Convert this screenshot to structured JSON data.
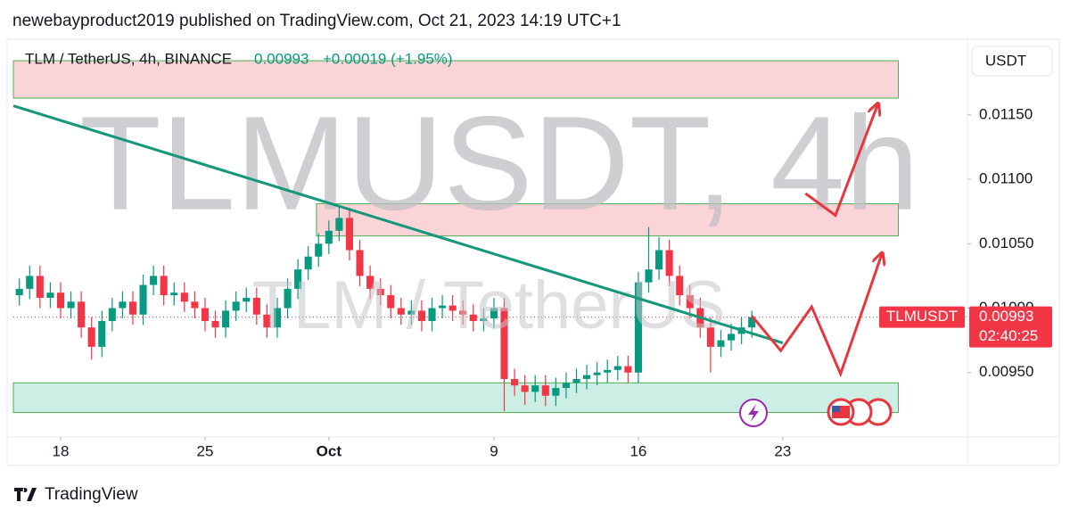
{
  "header": "newebayproduct2019 published on TradingView.com, Oct 21, 2023 14:19 UTC+1",
  "chart_data": {
    "type": "candlestick",
    "symbol": "TLM / TetherUS, 4h, BINANCE",
    "last": 0.00993,
    "change": "+0.00019 (+1.95%)",
    "watermark": "TLMUSDT, 4h",
    "watermark_sub": "TLM / TetherUS",
    "currency": "USDT",
    "price_label": "TLMUSDT",
    "countdown": "02:40:25",
    "colors": {
      "up": "#089981",
      "down": "#f23645",
      "trend": "#16977b",
      "projection": "#e8363f"
    },
    "x": [
      16,
      16.5,
      17,
      17.5,
      18,
      18.5,
      19,
      19.5,
      20,
      20.5,
      21,
      21.5,
      22,
      22.5,
      23,
      23.5,
      24,
      24.5,
      25,
      25.5,
      26,
      26.5,
      27,
      27.5,
      28,
      28.5,
      29,
      29.5,
      30,
      30.5,
      31,
      31.5,
      32,
      32.5,
      33,
      33.5,
      34,
      34.5,
      35,
      35.5,
      36,
      36.5,
      37,
      37.5,
      38,
      38.5,
      39,
      39.5,
      40,
      40.5,
      41,
      41.5,
      42,
      42.5,
      43,
      43.5,
      44,
      44.5,
      45,
      45.5,
      46,
      46.5,
      47,
      47.5,
      48,
      48.5,
      49,
      49.5,
      50,
      50.5,
      51,
      51.5
    ],
    "open": [
      0.0101,
      0.01015,
      0.01025,
      0.01008,
      0.01012,
      0.01,
      0.01005,
      0.00985,
      0.0097,
      0.0099,
      0.01,
      0.01005,
      0.00995,
      0.01018,
      0.01025,
      0.0101,
      0.01012,
      0.01005,
      0.01,
      0.0099,
      0.00985,
      0.00998,
      0.01005,
      0.01008,
      0.00995,
      0.00985,
      0.01,
      0.01015,
      0.0103,
      0.0104,
      0.0105,
      0.0106,
      0.0107,
      0.01045,
      0.01025,
      0.01015,
      0.0101,
      0.01,
      0.00995,
      0.00998,
      0.0099,
      0.01,
      0.01002,
      0.00998,
      0.00995,
      0.0099,
      0.00992,
      0.01,
      0.00945,
      0.0094,
      0.00935,
      0.0094,
      0.00932,
      0.00938,
      0.00942,
      0.00945,
      0.00948,
      0.0095,
      0.00952,
      0.00955,
      0.0095,
      0.0102,
      0.0103,
      0.01045,
      0.01025,
      0.0101,
      0.01,
      0.00985,
      0.0097,
      0.00975,
      0.0098,
      0.00985
    ],
    "high": [
      0.01023,
      0.01033,
      0.01033,
      0.0102,
      0.0102,
      0.01013,
      0.01013,
      0.00993,
      0.00998,
      0.01008,
      0.01013,
      0.01013,
      0.01026,
      0.01033,
      0.01033,
      0.0102,
      0.0102,
      0.01013,
      0.01008,
      0.00998,
      0.01006,
      0.01013,
      0.01016,
      0.01016,
      0.01003,
      0.01008,
      0.01023,
      0.01038,
      0.01048,
      0.01058,
      0.01068,
      0.01079,
      0.01078,
      0.01053,
      0.01033,
      0.01023,
      0.01018,
      0.01008,
      0.01006,
      0.01006,
      0.01008,
      0.0101,
      0.0101,
      0.01006,
      0.01003,
      0.01,
      0.01008,
      0.01008,
      0.00953,
      0.00948,
      0.00948,
      0.00948,
      0.00946,
      0.0095,
      0.00953,
      0.00956,
      0.00958,
      0.0096,
      0.00963,
      0.00963,
      0.01028,
      0.01063,
      0.01055,
      0.01053,
      0.01033,
      0.01018,
      0.01008,
      0.00993,
      0.00983,
      0.00988,
      0.00993,
      0.00998
    ],
    "low": [
      0.01002,
      0.01007,
      0.01,
      0.01,
      0.00992,
      0.00992,
      0.00977,
      0.0096,
      0.00962,
      0.00982,
      0.00992,
      0.00987,
      0.00987,
      0.0101,
      0.01002,
      0.01002,
      0.00997,
      0.00992,
      0.00982,
      0.00977,
      0.00977,
      0.0099,
      0.00997,
      0.00987,
      0.00977,
      0.00977,
      0.00992,
      0.01007,
      0.01022,
      0.01032,
      0.01042,
      0.01052,
      0.01037,
      0.01017,
      0.01007,
      0.01002,
      0.00992,
      0.00987,
      0.00987,
      0.00982,
      0.00982,
      0.00992,
      0.0099,
      0.00987,
      0.00982,
      0.00982,
      0.00984,
      0.0092,
      0.00932,
      0.00925,
      0.00927,
      0.00924,
      0.00924,
      0.0093,
      0.00934,
      0.00937,
      0.0094,
      0.00942,
      0.00944,
      0.00942,
      0.00942,
      0.01012,
      0.01022,
      0.01017,
      0.01002,
      0.00992,
      0.00977,
      0.0095,
      0.00962,
      0.00967,
      0.00972,
      0.00977
    ],
    "close": [
      0.01015,
      0.01025,
      0.01008,
      0.01012,
      0.01,
      0.01005,
      0.00985,
      0.0097,
      0.0099,
      0.01,
      0.01005,
      0.00995,
      0.01018,
      0.01025,
      0.0101,
      0.01012,
      0.01005,
      0.01,
      0.0099,
      0.00985,
      0.00998,
      0.01005,
      0.01008,
      0.00995,
      0.00985,
      0.01,
      0.01015,
      0.0103,
      0.0104,
      0.0105,
      0.0106,
      0.0107,
      0.01045,
      0.01025,
      0.01015,
      0.0101,
      0.01,
      0.00995,
      0.00998,
      0.0099,
      0.01,
      0.01002,
      0.00998,
      0.00995,
      0.0099,
      0.00992,
      0.01,
      0.00945,
      0.0094,
      0.00935,
      0.0094,
      0.00932,
      0.00938,
      0.00942,
      0.00945,
      0.00948,
      0.0095,
      0.00952,
      0.00955,
      0.0095,
      0.0102,
      0.0103,
      0.01045,
      0.01025,
      0.0101,
      0.01,
      0.00985,
      0.0097,
      0.00975,
      0.0098,
      0.00985,
      0.00993
    ],
    "xlim": [
      15.71,
      61.95
    ],
    "xticks": [
      18,
      25,
      {
        "value": 31,
        "label": "Oct"
      },
      {
        "value": 39,
        "label": "9"
      },
      {
        "value": 46,
        "label": "16"
      },
      {
        "value": 53,
        "label": "23"
      }
    ],
    "ylim": [
      0.009,
      0.01208
    ],
    "yticks": [
      {
        "value": 0.0095,
        "label": "0.00950"
      },
      {
        "value": 0.01,
        "label": "0.01000"
      },
      {
        "value": 0.0105,
        "label": "0.01050"
      },
      {
        "value": 0.011,
        "label": "0.01100"
      },
      {
        "value": 0.0115,
        "label": "0.01150"
      }
    ],
    "zones": [
      {
        "x": [
          15.71,
          58.6
        ],
        "y": [
          0.01163,
          0.01192
        ],
        "color": "#fad4d7"
      },
      {
        "x": [
          30.4,
          58.6
        ],
        "y": [
          0.01056,
          0.01081
        ],
        "color": "#fad4d7"
      },
      {
        "x": [
          15.71,
          58.6
        ],
        "y": [
          0.00919,
          0.00942
        ],
        "color": "#cdeee4"
      }
    ],
    "trendline": {
      "x": [
        15.71,
        53
      ],
      "y": [
        0.01157,
        0.00973
      ]
    },
    "projections": [
      {
        "x": [
          54.1,
          55.55,
          57.6
        ],
        "y": [
          0.01089,
          0.01072,
          0.01158
        ]
      },
      {
        "x": [
          51.5,
          52.9,
          54.4,
          55.8,
          57.8
        ],
        "y": [
          0.00994,
          0.00967,
          0.01001,
          0.00949,
          0.01042
        ]
      }
    ]
  },
  "footer": "TradingView"
}
